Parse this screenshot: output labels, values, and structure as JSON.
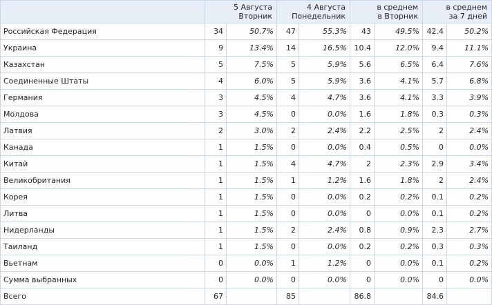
{
  "header": {
    "country": "",
    "col1_line1": "5 Августа",
    "col1_line2": "Вторник",
    "col2_line1": "4 Августа",
    "col2_line2": "Понедельник",
    "col3_line1": "в среднем",
    "col3_line2": "в Вторник",
    "col4_line1": "в среднем",
    "col4_line2": "за 7 дней"
  },
  "rows": [
    {
      "country": "Российская Федерация",
      "v1": "34",
      "p1": "50.7%",
      "v2": "47",
      "p2": "55.3%",
      "v3": "43",
      "p3": "49.5%",
      "v4": "42.4",
      "p4": "50.2%"
    },
    {
      "country": "Украина",
      "v1": "9",
      "p1": "13.4%",
      "v2": "14",
      "p2": "16.5%",
      "v3": "10.4",
      "p3": "12.0%",
      "v4": "9.4",
      "p4": "11.1%"
    },
    {
      "country": "Казахстан",
      "v1": "5",
      "p1": "7.5%",
      "v2": "5",
      "p2": "5.9%",
      "v3": "5.6",
      "p3": "6.5%",
      "v4": "6.4",
      "p4": "7.6%"
    },
    {
      "country": "Соединенные Штаты",
      "v1": "4",
      "p1": "6.0%",
      "v2": "5",
      "p2": "5.9%",
      "v3": "3.6",
      "p3": "4.1%",
      "v4": "5.7",
      "p4": "6.8%"
    },
    {
      "country": "Германия",
      "v1": "3",
      "p1": "4.5%",
      "v2": "4",
      "p2": "4.7%",
      "v3": "3.6",
      "p3": "4.1%",
      "v4": "3.3",
      "p4": "3.9%"
    },
    {
      "country": "Молдова",
      "v1": "3",
      "p1": "4.5%",
      "v2": "0",
      "p2": "0.0%",
      "v3": "1.6",
      "p3": "1.8%",
      "v4": "0.3",
      "p4": "0.3%"
    },
    {
      "country": "Латвия",
      "v1": "2",
      "p1": "3.0%",
      "v2": "2",
      "p2": "2.4%",
      "v3": "2.2",
      "p3": "2.5%",
      "v4": "2",
      "p4": "2.4%"
    },
    {
      "country": "Канада",
      "v1": "1",
      "p1": "1.5%",
      "v2": "0",
      "p2": "0.0%",
      "v3": "0.4",
      "p3": "0.5%",
      "v4": "0",
      "p4": "0.0%"
    },
    {
      "country": "Китай",
      "v1": "1",
      "p1": "1.5%",
      "v2": "4",
      "p2": "4.7%",
      "v3": "2",
      "p3": "2.3%",
      "v4": "2.9",
      "p4": "3.4%"
    },
    {
      "country": "Великобритания",
      "v1": "1",
      "p1": "1.5%",
      "v2": "1",
      "p2": "1.2%",
      "v3": "1.6",
      "p3": "1.8%",
      "v4": "2",
      "p4": "2.4%"
    },
    {
      "country": "Корея",
      "v1": "1",
      "p1": "1.5%",
      "v2": "0",
      "p2": "0.0%",
      "v3": "0.2",
      "p3": "0.2%",
      "v4": "0.1",
      "p4": "0.2%"
    },
    {
      "country": "Литва",
      "v1": "1",
      "p1": "1.5%",
      "v2": "0",
      "p2": "0.0%",
      "v3": "0",
      "p3": "0.0%",
      "v4": "0.1",
      "p4": "0.2%"
    },
    {
      "country": "Нидерланды",
      "v1": "1",
      "p1": "1.5%",
      "v2": "2",
      "p2": "2.4%",
      "v3": "0.8",
      "p3": "0.9%",
      "v4": "2.3",
      "p4": "2.7%"
    },
    {
      "country": "Таиланд",
      "v1": "1",
      "p1": "1.5%",
      "v2": "0",
      "p2": "0.0%",
      "v3": "0.2",
      "p3": "0.2%",
      "v4": "0.3",
      "p4": "0.3%"
    },
    {
      "country": "Вьетнам",
      "v1": "0",
      "p1": "0.0%",
      "v2": "1",
      "p2": "1.2%",
      "v3": "0",
      "p3": "0.0%",
      "v4": "0.1",
      "p4": "0.2%"
    },
    {
      "country": "Сумма выбранных",
      "v1": "0",
      "p1": "0.0%",
      "v2": "0",
      "p2": "0.0%",
      "v3": "0",
      "p3": "0.0%",
      "v4": "0",
      "p4": "0.0%"
    }
  ],
  "total": {
    "label": "Всего",
    "v1": "67",
    "v2": "85",
    "v3": "86.8",
    "v4": "84.6"
  }
}
